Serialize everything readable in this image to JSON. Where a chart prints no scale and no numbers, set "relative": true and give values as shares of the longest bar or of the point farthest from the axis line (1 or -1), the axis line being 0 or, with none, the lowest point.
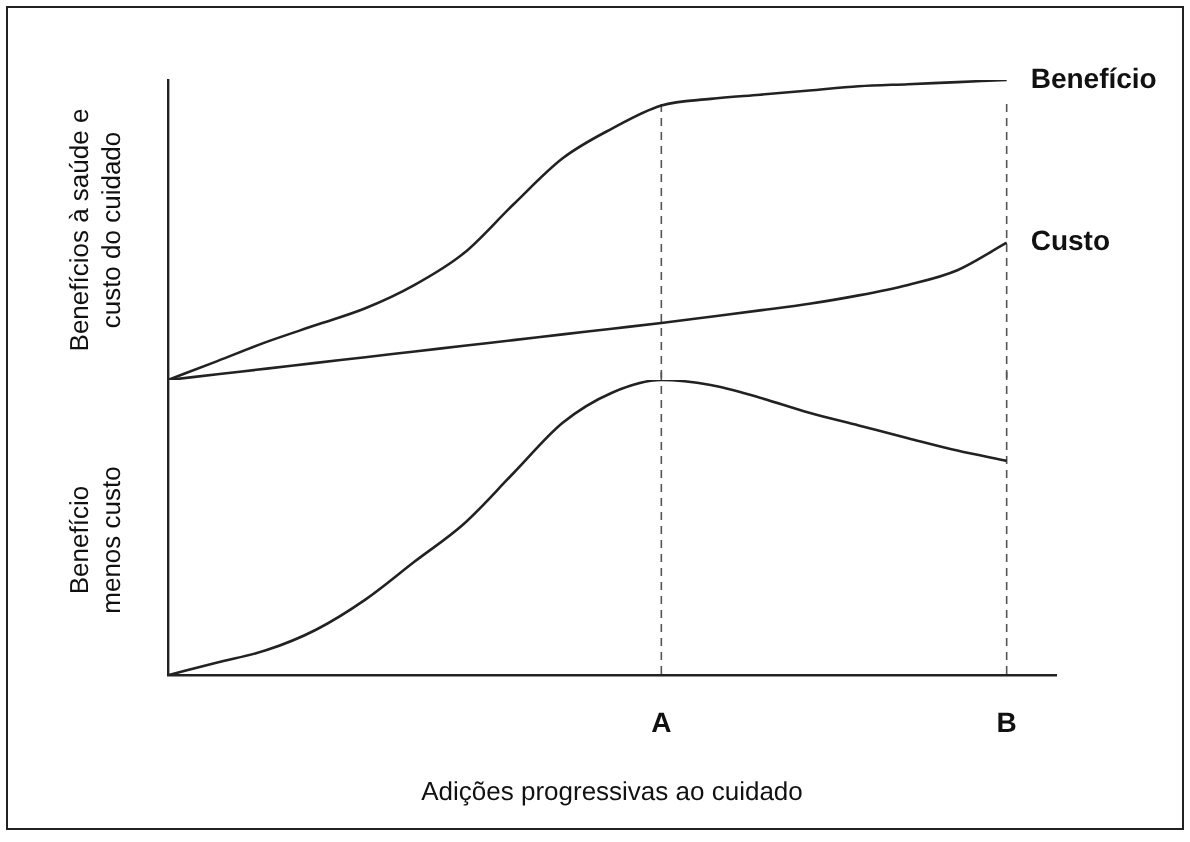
{
  "chart_data": [
    {
      "type": "line",
      "relative": true,
      "ylabel": "Benefícios à saúde e custo do cuidado",
      "categories": [
        null,
        null,
        null,
        null,
        null,
        null,
        null,
        null,
        null,
        null,
        "A",
        null,
        null,
        null,
        null,
        null,
        null,
        "B",
        null
      ],
      "tick_labels": false,
      "marker": "none",
      "line_style": "solid",
      "ref_lines": [
        {
          "axis": "x",
          "value": "A",
          "color": "#555555",
          "line_style": "dashed"
        },
        {
          "axis": "x",
          "value": "B",
          "color": "#555555",
          "line_style": "dashed"
        }
      ],
      "series": [
        {
          "name": "Benefício",
          "color": "#222222",
          "values": [
            0,
            0.063,
            0.127,
            0.183,
            0.239,
            0.317,
            0.423,
            0.585,
            0.739,
            0.838,
            0.915,
            0.937,
            0.951,
            0.965,
            0.979,
            0.986,
            0.993,
            1,
            null
          ]
        },
        {
          "name": "Custo",
          "color": "#222222",
          "values": [
            0,
            0.019,
            0.038,
            0.057,
            0.076,
            0.095,
            0.114,
            0.133,
            0.152,
            0.171,
            0.19,
            0.211,
            0.232,
            0.254,
            0.282,
            0.317,
            0.366,
            0.458,
            null
          ]
        }
      ]
    },
    {
      "type": "line",
      "relative": true,
      "ylabel": "Benefício menos custo",
      "xlabel": "Adições progressivas ao cuidado",
      "categories": [
        null,
        null,
        null,
        null,
        null,
        null,
        null,
        null,
        null,
        null,
        "A",
        null,
        null,
        null,
        null,
        null,
        null,
        "B",
        null
      ],
      "tick_labels": "x",
      "marker": "none",
      "line_style": "solid",
      "ref_lines": [
        {
          "axis": "x",
          "value": "A",
          "color": "#555555",
          "line_style": "dashed"
        },
        {
          "axis": "x",
          "value": "B",
          "color": "#555555",
          "line_style": "dashed"
        }
      ],
      "series": [
        {
          "color": "#222222",
          "values": [
            0,
            0.043,
            0.085,
            0.154,
            0.256,
            0.385,
            0.513,
            0.684,
            0.855,
            0.957,
            1,
            0.983,
            0.94,
            0.889,
            0.846,
            0.803,
            0.761,
            0.726,
            null
          ]
        }
      ]
    }
  ]
}
